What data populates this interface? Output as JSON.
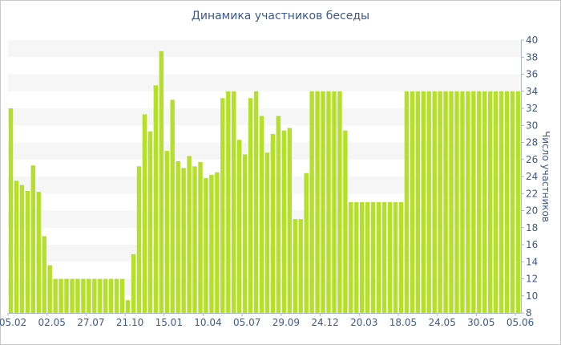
{
  "chart_data": {
    "type": "bar",
    "title": "Динамика участников беседы",
    "ylabel": "Число участников",
    "ylim": [
      8,
      40
    ],
    "yticks": [
      8,
      10,
      12,
      14,
      16,
      18,
      20,
      22,
      24,
      26,
      28,
      30,
      32,
      34,
      36,
      38,
      40
    ],
    "grid": "alternating-bands",
    "bar_color": "#b5e02a",
    "xtick_labels": [
      {
        "bar_index": 0,
        "label": "05.02"
      },
      {
        "bar_index": 7,
        "label": "02.05"
      },
      {
        "bar_index": 14,
        "label": "27.07"
      },
      {
        "bar_index": 21,
        "label": "21.10"
      },
      {
        "bar_index": 28,
        "label": "15.01"
      },
      {
        "bar_index": 35,
        "label": "10.04"
      },
      {
        "bar_index": 42,
        "label": "05.07"
      },
      {
        "bar_index": 49,
        "label": "29.09"
      },
      {
        "bar_index": 56,
        "label": "24.12"
      },
      {
        "bar_index": 63,
        "label": "20.03"
      },
      {
        "bar_index": 70,
        "label": "18.05"
      },
      {
        "bar_index": 77,
        "label": "24.05"
      },
      {
        "bar_index": 84,
        "label": "30.05"
      },
      {
        "bar_index": 91,
        "label": "05.06"
      }
    ],
    "values": [
      32,
      23.5,
      23,
      22.3,
      25.3,
      22.2,
      17,
      13.6,
      12,
      12,
      12,
      12,
      12,
      12,
      12,
      12,
      12,
      12,
      12,
      12,
      12,
      9.5,
      14.9,
      25.2,
      31.3,
      29.3,
      34.7,
      38.7,
      27,
      33,
      25.8,
      25,
      26.4,
      25.2,
      25.7,
      23.8,
      24.2,
      24.5,
      33.2,
      34,
      34,
      28.3,
      26.6,
      33.2,
      34,
      31.1,
      26.8,
      29,
      31.1,
      29.4,
      29.7,
      19,
      19,
      24.4,
      34,
      34,
      34,
      34,
      34,
      34,
      29.4,
      21,
      21,
      21,
      21,
      21,
      21,
      21,
      21,
      21,
      21,
      34,
      34,
      34,
      34,
      34,
      34,
      34,
      34,
      34,
      34,
      34,
      34,
      34,
      34,
      34,
      34,
      34,
      34,
      34,
      34,
      34
    ]
  }
}
